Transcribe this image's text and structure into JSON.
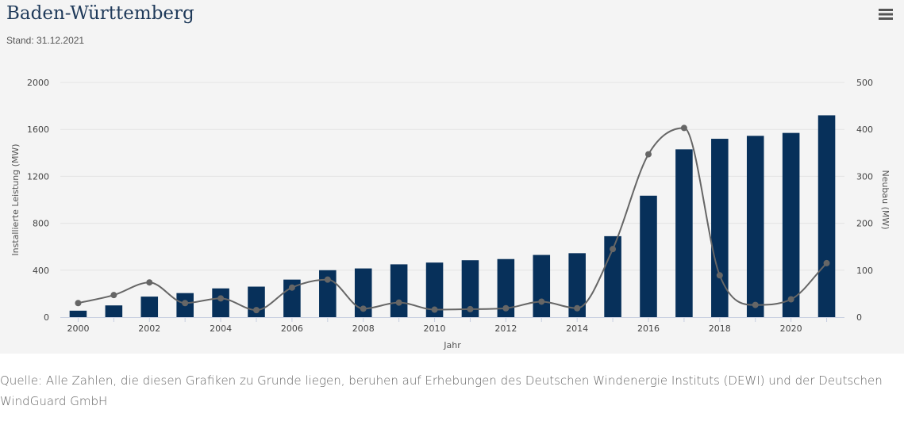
{
  "chart_title": "Baden-Württemberg",
  "chart_subtitle": "Stand: 31.12.2021",
  "menu_icon": "hamburger-menu-icon",
  "source_note": "Quelle: Alle Zahlen, die diesen Grafiken zu Grunde liegen, beruhen auf Erhebungen des Deutschen Windenergie Instituts (DEWI) und der Deutschen WindGuard GmbH",
  "colors": {
    "bars": "#07305a",
    "line": "#666666",
    "panel": "#f4f4f4",
    "grid": "#e3e3e3",
    "title": "#1f3a5a"
  },
  "chart_data": {
    "type": "bar",
    "xlabel": "Jahr",
    "ylabel": "Installierte Leistung (MW)",
    "y2label": "Neubau (MW)",
    "x": [
      2000,
      2001,
      2002,
      2003,
      2004,
      2005,
      2006,
      2007,
      2008,
      2009,
      2010,
      2011,
      2012,
      2013,
      2014,
      2015,
      2016,
      2017,
      2018,
      2019,
      2020,
      2021
    ],
    "x_ticks": [
      "2000",
      "2002",
      "2004",
      "2006",
      "2008",
      "2010",
      "2012",
      "2014",
      "2016",
      "2018",
      "2020"
    ],
    "ylim": [
      0,
      2000
    ],
    "y_ticks": [
      "0",
      "400",
      "800",
      "1200",
      "1600",
      "2000"
    ],
    "y2lim": [
      0,
      500
    ],
    "y2_ticks": [
      "0",
      "100",
      "200",
      "300",
      "400",
      "500"
    ],
    "grid": true,
    "series": [
      {
        "type": "bar",
        "axis": "left",
        "values": [
          55,
          100,
          175,
          205,
          245,
          260,
          320,
          400,
          415,
          450,
          465,
          485,
          495,
          530,
          545,
          690,
          1035,
          1430,
          1520,
          1545,
          1570,
          1720
        ]
      },
      {
        "type": "line",
        "axis": "right",
        "values": [
          30,
          47,
          74,
          30,
          40,
          15,
          63,
          80,
          18,
          31,
          16,
          17,
          19,
          33,
          19,
          145,
          347,
          403,
          89,
          26,
          38,
          115
        ]
      }
    ]
  }
}
